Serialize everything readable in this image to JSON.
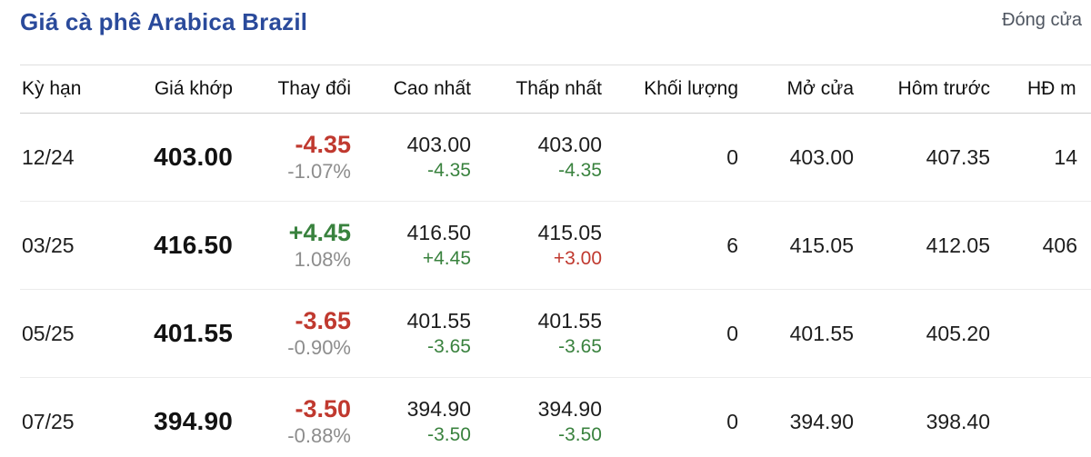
{
  "colors": {
    "title_blue": "#2a4a9b",
    "down_red": "#c0392f",
    "up_green": "#39823e",
    "muted_gray": "#8d8d8d"
  },
  "header": {
    "title": "Giá cà phê Arabica Brazil",
    "market_status": "Đóng cửa"
  },
  "table": {
    "columns": {
      "term": "Kỳ hạn",
      "price": "Giá khớp",
      "change": "Thay đổi",
      "high": "Cao nhất",
      "low": "Thấp nhất",
      "volume": "Khối lượng",
      "open": "Mở cửa",
      "prev": "Hôm trước",
      "open_interest": "HĐ m"
    },
    "rows": [
      {
        "term": "12/24",
        "price": "403.00",
        "change": "-4.35",
        "change_pct": "-1.07%",
        "change_color": "red",
        "high": "403.00",
        "high_sub": "-4.35",
        "high_sub_color": "green",
        "low": "403.00",
        "low_sub": "-4.35",
        "low_sub_color": "green",
        "volume": "0",
        "open": "403.00",
        "prev": "407.35",
        "open_interest": "14"
      },
      {
        "term": "03/25",
        "price": "416.50",
        "change": "+4.45",
        "change_pct": "1.08%",
        "change_color": "green",
        "high": "416.50",
        "high_sub": "+4.45",
        "high_sub_color": "green",
        "low": "415.05",
        "low_sub": "+3.00",
        "low_sub_color": "red",
        "volume": "6",
        "open": "415.05",
        "prev": "412.05",
        "open_interest": "406"
      },
      {
        "term": "05/25",
        "price": "401.55",
        "change": "-3.65",
        "change_pct": "-0.90%",
        "change_color": "red",
        "high": "401.55",
        "high_sub": "-3.65",
        "high_sub_color": "green",
        "low": "401.55",
        "low_sub": "-3.65",
        "low_sub_color": "green",
        "volume": "0",
        "open": "401.55",
        "prev": "405.20",
        "open_interest": ""
      },
      {
        "term": "07/25",
        "price": "394.90",
        "change": "-3.50",
        "change_pct": "-0.88%",
        "change_color": "red",
        "high": "394.90",
        "high_sub": "-3.50",
        "high_sub_color": "green",
        "low": "394.90",
        "low_sub": "-3.50",
        "low_sub_color": "green",
        "volume": "0",
        "open": "394.90",
        "prev": "398.40",
        "open_interest": ""
      }
    ]
  },
  "chart_data": {
    "type": "table",
    "title": "Giá cà phê Arabica Brazil",
    "columns": [
      "Kỳ hạn",
      "Giá khớp",
      "Thay đổi",
      "Thay đổi %",
      "Cao nhất",
      "Cao nhất +/-",
      "Thấp nhất",
      "Thấp nhất +/-",
      "Khối lượng",
      "Mở cửa",
      "Hôm trước",
      "HĐ mở"
    ],
    "rows": [
      [
        "12/24",
        403.0,
        -4.35,
        "-1.07%",
        403.0,
        -4.35,
        403.0,
        -4.35,
        0,
        403.0,
        407.35,
        "14"
      ],
      [
        "03/25",
        416.5,
        4.45,
        "1.08%",
        416.5,
        4.45,
        415.05,
        3.0,
        6,
        415.05,
        412.05,
        "406"
      ],
      [
        "05/25",
        401.55,
        -3.65,
        "-0.90%",
        401.55,
        -3.65,
        401.55,
        -3.65,
        0,
        401.55,
        405.2,
        ""
      ],
      [
        "07/25",
        394.9,
        -3.5,
        "-0.88%",
        394.9,
        -3.5,
        394.9,
        -3.5,
        0,
        394.9,
        398.4,
        ""
      ]
    ]
  }
}
